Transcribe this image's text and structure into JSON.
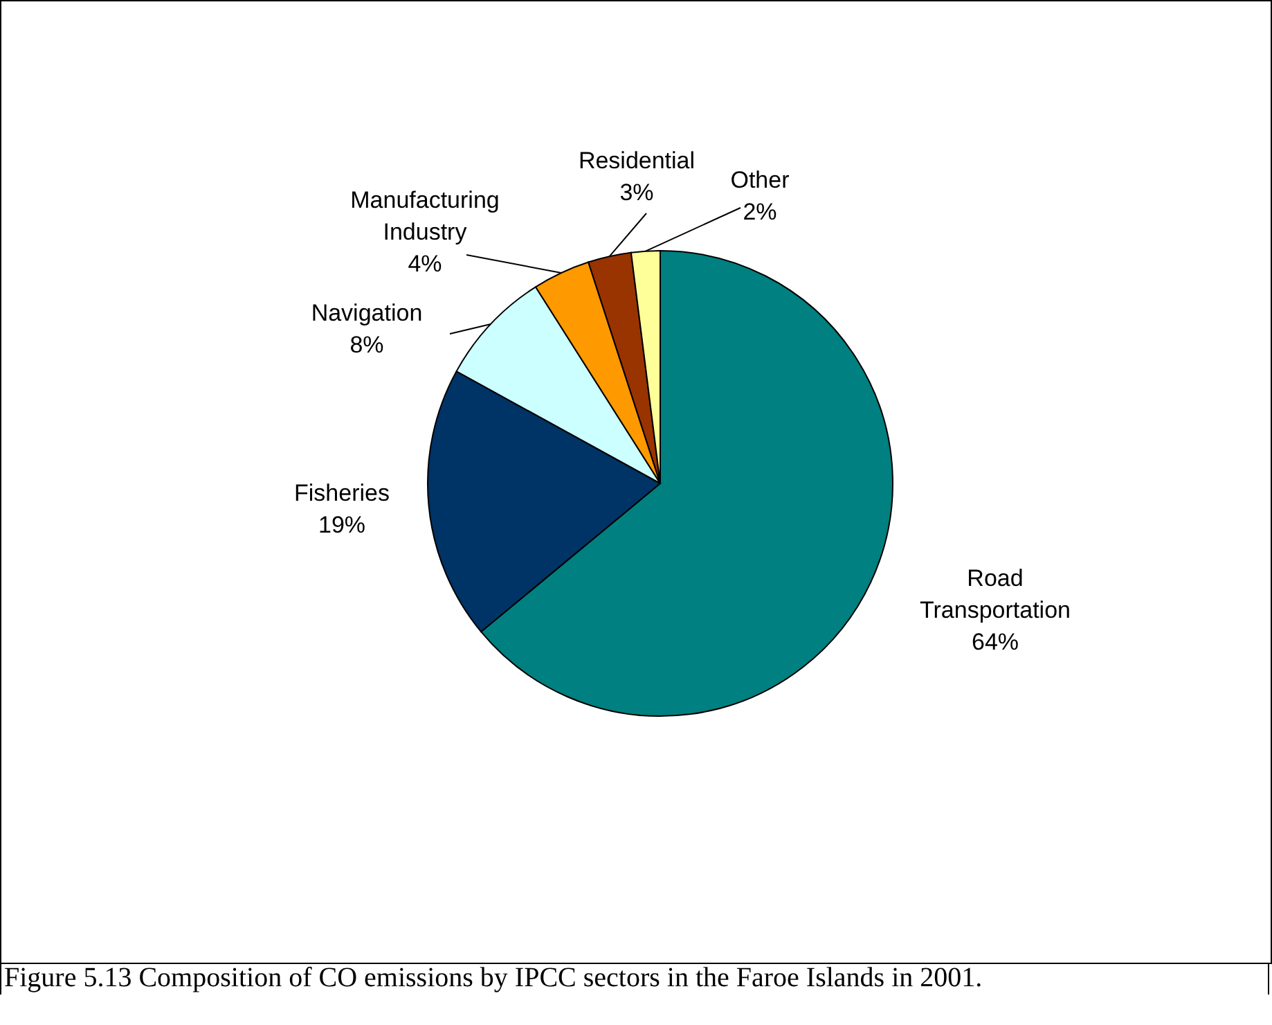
{
  "chart_data": {
    "type": "pie",
    "categories": [
      "Road Transportation",
      "Fisheries",
      "Navigation",
      "Manufacturing Industry",
      "Residential",
      "Other"
    ],
    "values": [
      64,
      19,
      8,
      4,
      3,
      2
    ],
    "colors": [
      "#008080",
      "#003366",
      "#ccffff",
      "#ff9900",
      "#993300",
      "#ffff99"
    ],
    "value_labels": [
      "64%",
      "19%",
      "8%",
      "4%",
      "3%",
      "2%"
    ],
    "legend": false,
    "annotations": [
      "Figure 5.13 Composition of CO emissions by IPCC sectors in the Faroe Islands in 2001."
    ]
  }
}
